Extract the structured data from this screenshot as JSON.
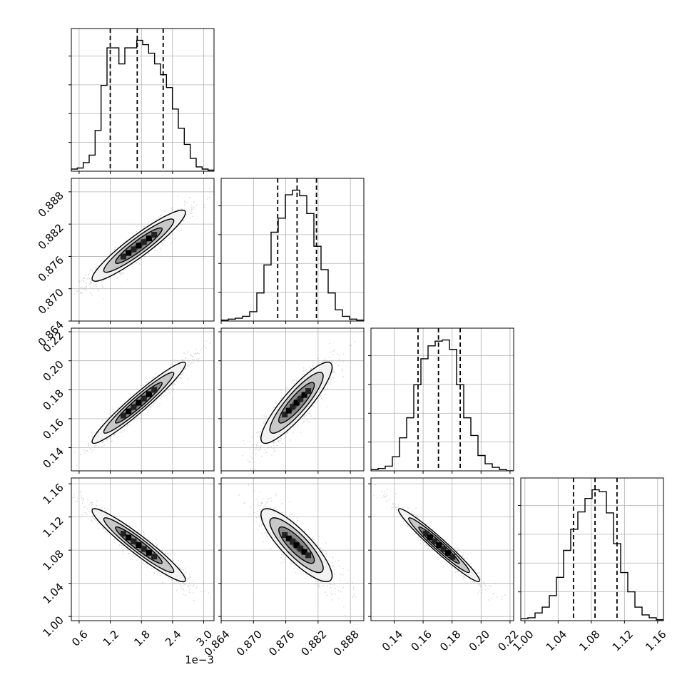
{
  "chart_data": {
    "type": "corner",
    "grid": true,
    "parameters": [
      {
        "range": [
          0.00045,
          0.0032
        ],
        "ticks": [
          0.0006,
          0.0012,
          0.0018,
          0.0024,
          0.003
        ],
        "tick_labels": [
          "0.6",
          "1.2",
          "1.8",
          "2.4",
          "3.0"
        ],
        "offset_label": "1e−3"
      },
      {
        "range": [
          0.864,
          0.8905
        ],
        "ticks": [
          0.864,
          0.87,
          0.876,
          0.882,
          0.888
        ],
        "tick_labels": [
          "0.864",
          "0.870",
          "0.876",
          "0.882",
          "0.888"
        ]
      },
      {
        "range": [
          0.124,
          0.2225
        ],
        "ticks": [
          0.14,
          0.16,
          0.18,
          0.2,
          0.22
        ],
        "tick_labels": [
          "0.14",
          "0.16",
          "0.18",
          "0.20",
          "0.22"
        ]
      },
      {
        "range": [
          0.995,
          1.167
        ],
        "ticks": [
          1.0,
          1.04,
          1.08,
          1.12,
          1.16
        ],
        "tick_labels": [
          "1.00",
          "1.04",
          "1.08",
          "1.12",
          "1.16"
        ]
      }
    ],
    "histograms": [
      {
        "bin_edges_range": [
          0.00045,
          0.0032
        ],
        "counts": [
          2,
          3,
          8,
          15,
          38,
          80,
          115,
          115,
          100,
          115,
          115,
          122,
          118,
          110,
          100,
          90,
          78,
          58,
          40,
          25,
          12,
          4,
          2,
          1
        ],
        "quantiles": [
          0.0012,
          0.00172,
          0.00222
        ]
      },
      {
        "bin_edges_range": [
          0.864,
          0.8905
        ],
        "counts": [
          1,
          2,
          3,
          5,
          10,
          30,
          60,
          95,
          110,
          135,
          140,
          134,
          115,
          80,
          55,
          30,
          12,
          5,
          2,
          1
        ],
        "quantiles": [
          0.8745,
          0.8781,
          0.8817
        ]
      },
      {
        "bin_edges_range": [
          0.124,
          0.2225
        ],
        "counts": [
          1,
          2,
          4,
          12,
          28,
          45,
          73,
          95,
          106,
          110,
          111,
          103,
          73,
          45,
          30,
          13,
          6,
          3,
          1,
          0
        ],
        "quantiles": [
          0.1565,
          0.1706,
          0.1856
        ]
      },
      {
        "bin_edges_range": [
          0.995,
          1.167
        ],
        "counts": [
          2,
          3,
          8,
          14,
          26,
          45,
          73,
          95,
          113,
          127,
          136,
          134,
          112,
          80,
          50,
          30,
          14,
          6,
          3,
          1
        ],
        "quantiles": [
          1.0585,
          1.0845,
          1.111
        ]
      }
    ],
    "pairs": [
      {
        "x": 0,
        "y": 1,
        "mean": [
          0.00175,
          0.878
        ],
        "sd": [
          0.00045,
          0.0033
        ],
        "corr": 0.93
      },
      {
        "x": 0,
        "y": 2,
        "mean": [
          0.00175,
          0.171
        ],
        "sd": [
          0.00045,
          0.014
        ],
        "corr": 0.96
      },
      {
        "x": 1,
        "y": 2,
        "mean": [
          0.878,
          0.171
        ],
        "sd": [
          0.0033,
          0.014
        ],
        "corr": 0.88
      },
      {
        "x": 0,
        "y": 3,
        "mean": [
          0.00175,
          1.086
        ],
        "sd": [
          0.00045,
          0.022
        ],
        "corr": -0.95
      },
      {
        "x": 1,
        "y": 3,
        "mean": [
          0.878,
          1.086
        ],
        "sd": [
          0.0033,
          0.022
        ],
        "corr": -0.84
      },
      {
        "x": 2,
        "y": 3,
        "mean": [
          0.171,
          1.086
        ],
        "sd": [
          0.014,
          0.022
        ],
        "corr": -0.97
      }
    ]
  }
}
